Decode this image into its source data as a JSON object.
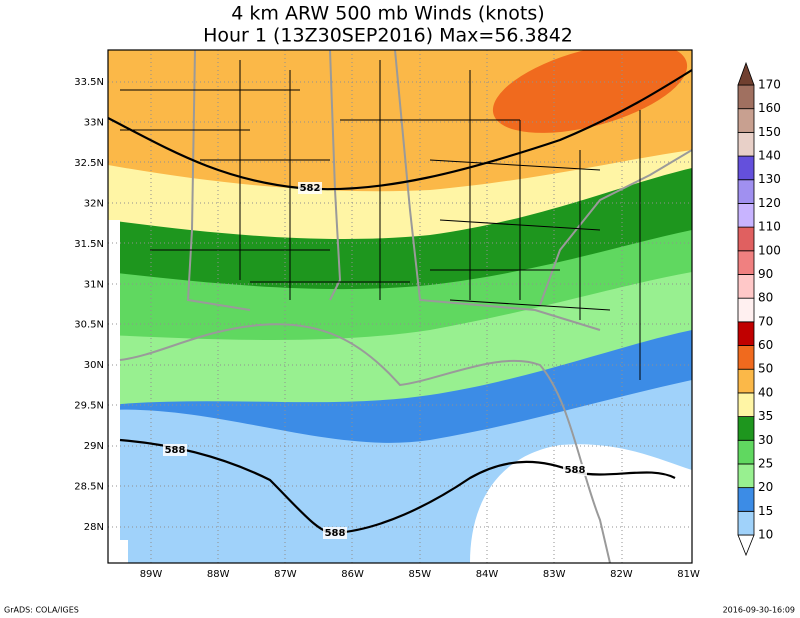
{
  "title": {
    "line1": "4 km ARW 500 mb Winds (knots)",
    "line2": "Hour 1 (13Z30SEP2016) Max=56.3842"
  },
  "lat_labels": [
    "33.5N",
    "33N",
    "32.5N",
    "32N",
    "31.5N",
    "31N",
    "30.5N",
    "30N",
    "29.5N",
    "29N",
    "28.5N",
    "28N"
  ],
  "lon_labels": [
    "89W",
    "88W",
    "87W",
    "86W",
    "85W",
    "84W",
    "83W",
    "82W",
    "81W"
  ],
  "contour_labels": [
    "582",
    "588",
    "588",
    "588"
  ],
  "colorbar": {
    "labels": [
      "10",
      "15",
      "20",
      "25",
      "30",
      "35",
      "40",
      "50",
      "60",
      "70",
      "80",
      "90",
      "100",
      "110",
      "120",
      "130",
      "140",
      "150",
      "160",
      "170"
    ],
    "colors": [
      "#ffffff",
      "#a0d2fa",
      "#3c8ce6",
      "#98f090",
      "#60d860",
      "#1e961e",
      "#fff5a5",
      "#fbb848",
      "#f06a1e",
      "#c00000",
      "#fff0f0",
      "#ffc8c8",
      "#f08080",
      "#e06060",
      "#c8b4ff",
      "#a090f0",
      "#6450dc",
      "#e8d0c8",
      "#c8a090",
      "#a07060",
      "#704030"
    ]
  },
  "footer": {
    "left": "GrADS: COLA/IGES",
    "right": "2016-09-30-16:09"
  }
}
